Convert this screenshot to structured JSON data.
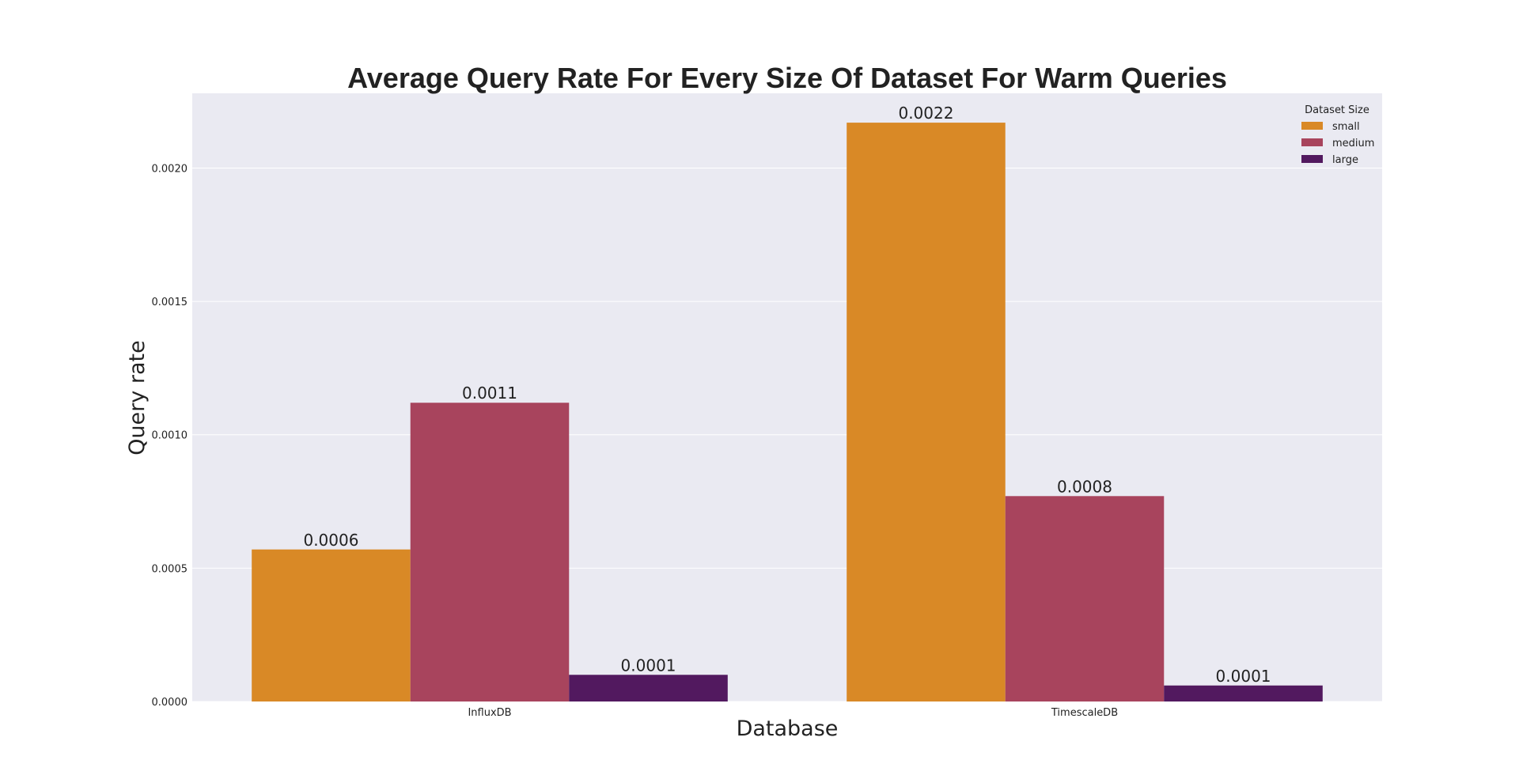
{
  "chart_data": {
    "type": "bar",
    "title": "Average Query Rate For Every Size Of Dataset For Warm Queries",
    "xlabel": "Database",
    "ylabel": "Query rate",
    "categories": [
      "InfluxDB",
      "TimescaleDB"
    ],
    "series": [
      {
        "name": "small",
        "values": [
          0.00057,
          0.00217
        ],
        "labels": [
          "0.0006",
          "0.0022"
        ],
        "color": "#d98926"
      },
      {
        "name": "medium",
        "values": [
          0.00112,
          0.00077
        ],
        "labels": [
          "0.0011",
          "0.0008"
        ],
        "color": "#a8445d"
      },
      {
        "name": "large",
        "values": [
          0.0001,
          6e-05
        ],
        "labels": [
          "0.0001",
          "0.0001"
        ],
        "color": "#52195f"
      }
    ],
    "ylim": [
      0,
      0.00228
    ],
    "yticks": [
      0,
      0.0005,
      0.001,
      0.0015,
      0.002
    ],
    "ytick_labels": [
      "0.0000",
      "0.0005",
      "0.0010",
      "0.0015",
      "0.0020"
    ],
    "grid": true,
    "legend": {
      "title": "Dataset Size",
      "placement": "top-right"
    },
    "background": "#eaeaf2",
    "grid_color": "#ffffff"
  }
}
